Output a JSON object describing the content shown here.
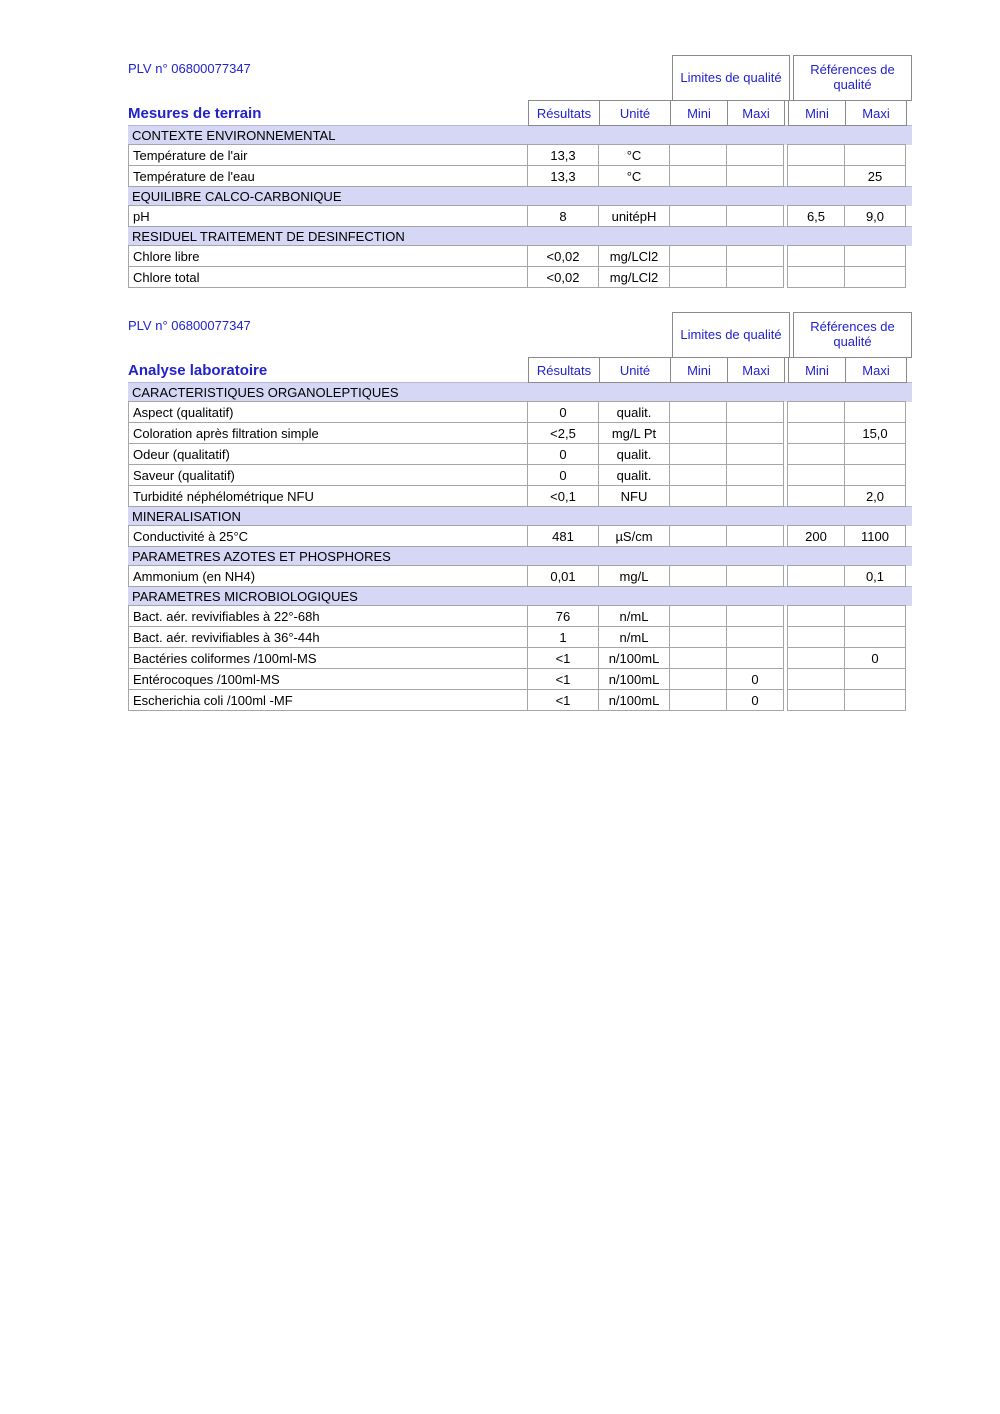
{
  "colors": {
    "accent_blue": "#2222cc",
    "section_background": "#d6d6f5",
    "cell_border": "#a6a6a6"
  },
  "header_labels": {
    "limites_group": "Limites de qualité",
    "references_group": "Références de qualité",
    "resultats": "Résultats",
    "unite": "Unité",
    "mini": "Mini",
    "maxi": "Maxi"
  },
  "tables": [
    {
      "plv": "PLV n° 06800077347",
      "title": "Mesures de terrain",
      "rows": [
        {
          "type": "section",
          "label": "CONTEXTE ENVIRONNEMENTAL"
        },
        {
          "type": "data",
          "label": "Température de l'air",
          "resultat": "13,3",
          "unite": "°C"
        },
        {
          "type": "data",
          "label": "Température de l'eau",
          "resultat": "13,3",
          "unite": "°C",
          "ref_maxi": "25"
        },
        {
          "type": "section",
          "label": "EQUILIBRE CALCO-CARBONIQUE"
        },
        {
          "type": "data",
          "label": "pH",
          "resultat": "8",
          "unite": "unitépH",
          "ref_mini": "6,5",
          "ref_maxi": "9,0"
        },
        {
          "type": "section",
          "label": "RESIDUEL TRAITEMENT DE DESINFECTION"
        },
        {
          "type": "data",
          "label": "Chlore libre",
          "resultat": "<0,02",
          "unite": "mg/LCl2"
        },
        {
          "type": "data",
          "label": "Chlore total",
          "resultat": "<0,02",
          "unite": "mg/LCl2"
        }
      ]
    },
    {
      "plv": "PLV n° 06800077347",
      "title": "Analyse laboratoire",
      "rows": [
        {
          "type": "section",
          "label": "CARACTERISTIQUES ORGANOLEPTIQUES"
        },
        {
          "type": "data",
          "label": "Aspect (qualitatif)",
          "resultat": "0",
          "unite": "qualit."
        },
        {
          "type": "data",
          "label": "Coloration après filtration simple",
          "resultat": "<2,5",
          "unite": "mg/L Pt",
          "ref_maxi": "15,0"
        },
        {
          "type": "data",
          "label": "Odeur (qualitatif)",
          "resultat": "0",
          "unite": "qualit."
        },
        {
          "type": "data",
          "label": "Saveur (qualitatif)",
          "resultat": "0",
          "unite": "qualit."
        },
        {
          "type": "data",
          "label": "Turbidité néphélométrique NFU",
          "resultat": "<0,1",
          "unite": "NFU",
          "ref_maxi": "2,0"
        },
        {
          "type": "section",
          "label": "MINERALISATION"
        },
        {
          "type": "data",
          "label": "Conductivité à 25°C",
          "resultat": "481",
          "unite": "µS/cm",
          "ref_mini": "200",
          "ref_maxi": "1100"
        },
        {
          "type": "section",
          "label": "PARAMETRES AZOTES ET PHOSPHORES"
        },
        {
          "type": "data",
          "label": "Ammonium (en NH4)",
          "resultat": "0,01",
          "unite": "mg/L",
          "ref_maxi": "0,1"
        },
        {
          "type": "section",
          "label": "PARAMETRES MICROBIOLOGIQUES"
        },
        {
          "type": "data",
          "label": "Bact. aér. revivifiables à 22°-68h",
          "resultat": "76",
          "unite": "n/mL"
        },
        {
          "type": "data",
          "label": "Bact. aér. revivifiables à 36°-44h",
          "resultat": "1",
          "unite": "n/mL"
        },
        {
          "type": "data",
          "label": "Bactéries coliformes /100ml-MS",
          "resultat": "<1",
          "unite": "n/100mL",
          "ref_maxi": "0"
        },
        {
          "type": "data",
          "label": "Entérocoques /100ml-MS",
          "resultat": "<1",
          "unite": "n/100mL",
          "lim_maxi": "0"
        },
        {
          "type": "data",
          "label": "Escherichia coli /100ml -MF",
          "resultat": "<1",
          "unite": "n/100mL",
          "lim_maxi": "0"
        }
      ]
    }
  ]
}
